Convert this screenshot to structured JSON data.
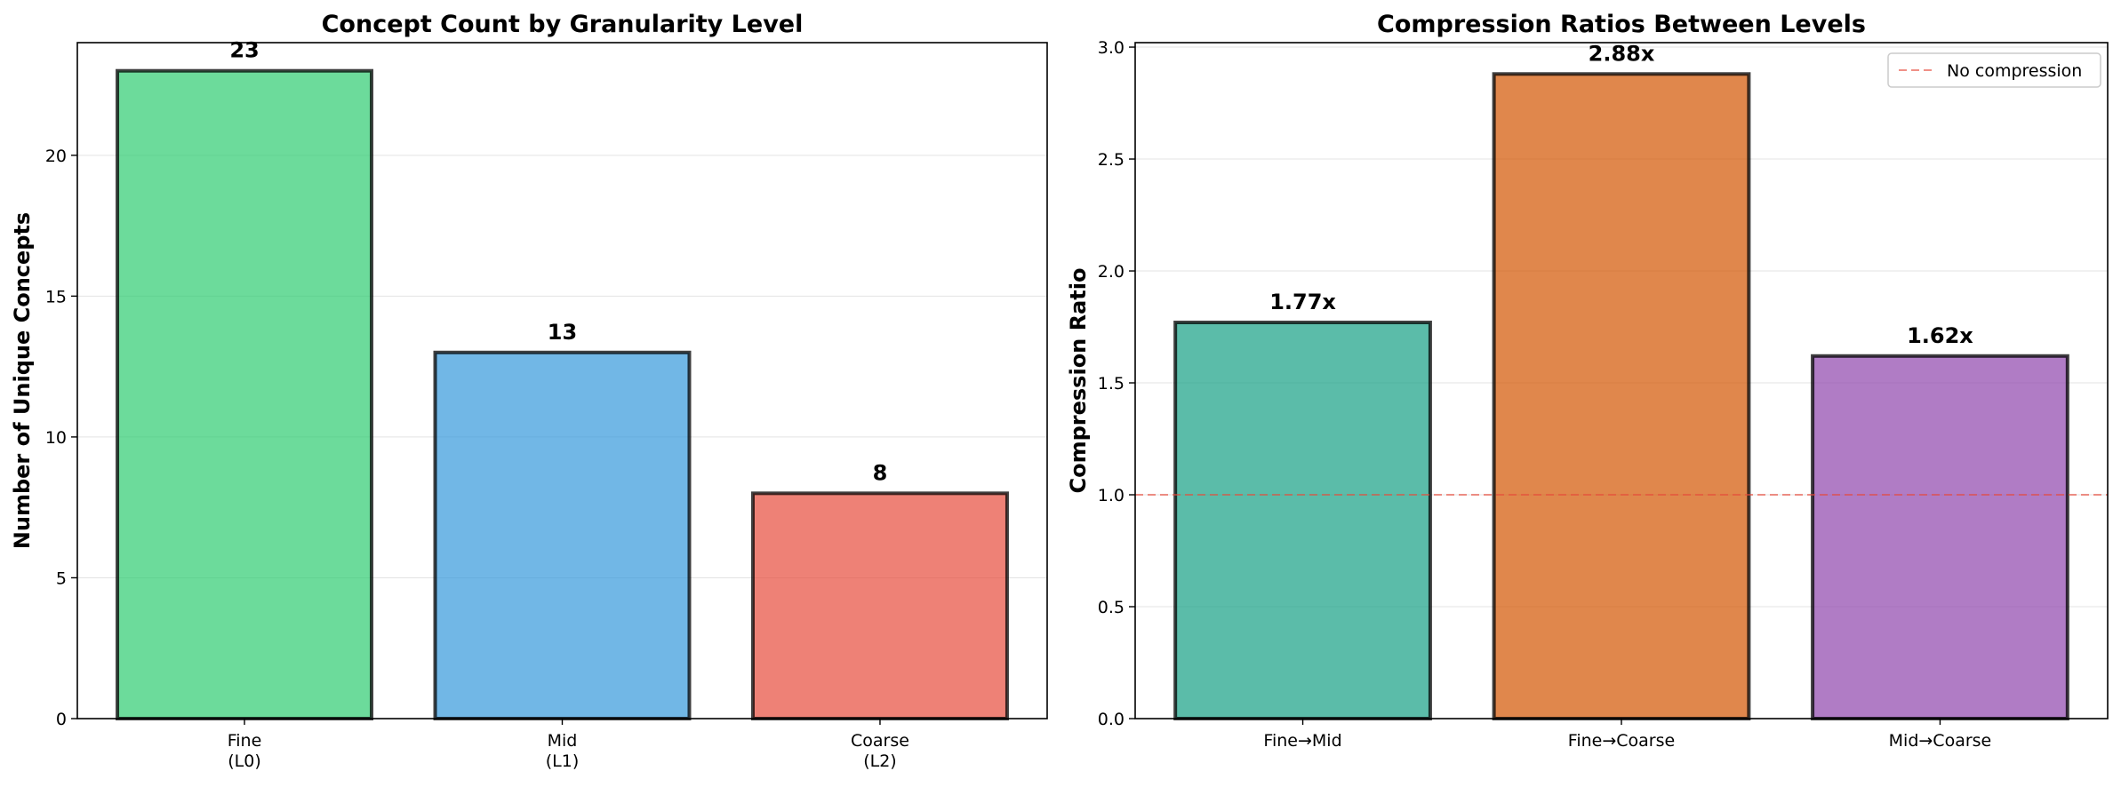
{
  "chart_data": [
    {
      "type": "bar",
      "title": "Concept Count by Granularity Level",
      "xlabel": "",
      "ylabel": "Number of Unique Concepts",
      "categories": [
        [
          "Fine",
          "(L0)"
        ],
        [
          "Mid",
          "(L1)"
        ],
        [
          "Coarse",
          "(L2)"
        ]
      ],
      "values": [
        23,
        13,
        8
      ],
      "data_labels": [
        "23",
        "13",
        "8"
      ],
      "colors": [
        "#2ecc71",
        "#3498db",
        "#e74c3c"
      ],
      "ylim": [
        0,
        24
      ],
      "yticks": [
        0,
        5,
        10,
        15,
        20
      ],
      "grid": true
    },
    {
      "type": "bar",
      "title": "Compression Ratios Between Levels",
      "xlabel": "",
      "ylabel": "Compression Ratio",
      "categories": [
        [
          "Fine→Mid"
        ],
        [
          "Fine→Coarse"
        ],
        [
          "Mid→Coarse"
        ]
      ],
      "values": [
        1.77,
        2.88,
        1.62
      ],
      "data_labels": [
        "1.77x",
        "2.88x",
        "1.62x"
      ],
      "colors": [
        "#16a085",
        "#d35400",
        "#8e44ad"
      ],
      "ylim": [
        0,
        3.02
      ],
      "yticks": [
        0.0,
        0.5,
        1.0,
        1.5,
        2.0,
        2.5,
        3.0
      ],
      "ytick_labels": [
        "0.0",
        "0.5",
        "1.0",
        "1.5",
        "2.0",
        "2.5",
        "3.0"
      ],
      "grid": true,
      "reference_line": {
        "y": 1.0,
        "label": "No compression",
        "color": "#e74c3c",
        "style": "dashed"
      },
      "legend": {
        "placement": "top-right",
        "entries": [
          "No compression"
        ]
      }
    }
  ]
}
